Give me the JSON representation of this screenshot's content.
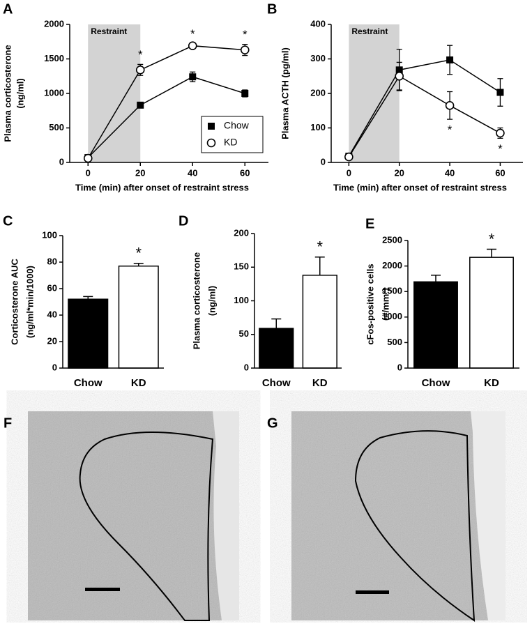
{
  "chart_data": [
    {
      "type": "line",
      "panel_label": "A",
      "ylabel": [
        "Plasma corticosterone",
        "(ng/ml)"
      ],
      "xlabel": "Time (min) after onset of restraint stress",
      "x": [
        0,
        20,
        40,
        60
      ],
      "xlim": [
        -7,
        69
      ],
      "xticks": [
        0,
        20,
        40,
        60
      ],
      "ylim": [
        0,
        2000
      ],
      "yticks": [
        0,
        500,
        1000,
        1500,
        2000
      ],
      "shade": {
        "x": [
          0,
          20
        ],
        "label": "Restraint",
        "color": "#d3d3d3"
      },
      "legend": "lower right",
      "series": [
        {
          "name": "Chow",
          "color": "#000000",
          "marker": "square",
          "values": [
            70,
            830,
            1240,
            1000
          ],
          "errors": [
            20,
            40,
            70,
            50
          ]
        },
        {
          "name": "KD",
          "color": "#000000",
          "marker": "circle",
          "values": [
            60,
            1340,
            1690,
            1630
          ],
          "errors": [
            20,
            80,
            30,
            80
          ]
        }
      ],
      "annotations": [
        {
          "x": 20,
          "series": "KD",
          "position": "above",
          "text": "*"
        },
        {
          "x": 40,
          "series": "KD",
          "position": "above",
          "text": "*"
        },
        {
          "x": 60,
          "series": "KD",
          "position": "above",
          "text": "*"
        }
      ]
    },
    {
      "type": "line",
      "panel_label": "B",
      "ylabel": [
        "Plasma ACTH (pg/ml)"
      ],
      "xlabel": "Time (min) after onset of restraint stress",
      "x": [
        0,
        20,
        40,
        60
      ],
      "xlim": [
        -7,
        69
      ],
      "xticks": [
        0,
        20,
        40,
        60
      ],
      "ylim": [
        0,
        400
      ],
      "yticks": [
        0,
        100,
        200,
        300,
        400
      ],
      "shade": {
        "x": [
          0,
          20
        ],
        "label": "Restraint",
        "color": "#d3d3d3"
      },
      "series": [
        {
          "name": "Chow",
          "color": "#000000",
          "marker": "square",
          "values": [
            18,
            268,
            297,
            203
          ],
          "errors": [
            5,
            60,
            42,
            40
          ]
        },
        {
          "name": "KD",
          "color": "#000000",
          "marker": "circle",
          "values": [
            16,
            250,
            165,
            85
          ],
          "errors": [
            5,
            40,
            40,
            15
          ]
        }
      ],
      "annotations": [
        {
          "x": 40,
          "series": "KD",
          "position": "below",
          "text": "*"
        },
        {
          "x": 60,
          "series": "KD",
          "position": "below",
          "text": "*"
        }
      ]
    },
    {
      "type": "bar",
      "panel_label": "C",
      "ylabel": [
        "Corticosterone AUC",
        "(ng/ml*min/1000)"
      ],
      "categories": [
        "Chow",
        "KD"
      ],
      "values": [
        52,
        77
      ],
      "errors": [
        2,
        2
      ],
      "colors": [
        "#000000",
        "#ffffff"
      ],
      "ylim": [
        0,
        100
      ],
      "yticks": [
        0,
        20,
        40,
        60,
        80,
        100
      ],
      "annotations": [
        {
          "category": "KD",
          "text": "*"
        }
      ]
    },
    {
      "type": "bar",
      "panel_label": "D",
      "ylabel": [
        "Plasma corticosterone",
        "(ng/ml)"
      ],
      "categories": [
        "Chow",
        "KD"
      ],
      "values": [
        59,
        138
      ],
      "errors": [
        14,
        27
      ],
      "colors": [
        "#000000",
        "#ffffff"
      ],
      "ylim": [
        0,
        200
      ],
      "yticks": [
        0,
        50,
        100,
        150,
        200
      ],
      "annotations": [
        {
          "category": "KD",
          "text": "*"
        }
      ]
    },
    {
      "type": "bar",
      "panel_label": "E",
      "ylabel": [
        "cFos-positive cells",
        "(#/mm²)"
      ],
      "categories": [
        "Chow",
        "KD"
      ],
      "values": [
        1690,
        2170
      ],
      "errors": [
        130,
        160
      ],
      "colors": [
        "#000000",
        "#ffffff"
      ],
      "ylim": [
        0,
        2500
      ],
      "yticks": [
        0,
        500,
        1000,
        1500,
        2000,
        2500
      ],
      "annotations": [
        {
          "category": "KD",
          "text": "*"
        }
      ]
    }
  ],
  "images": [
    {
      "panel_label": "F"
    },
    {
      "panel_label": "G"
    }
  ]
}
